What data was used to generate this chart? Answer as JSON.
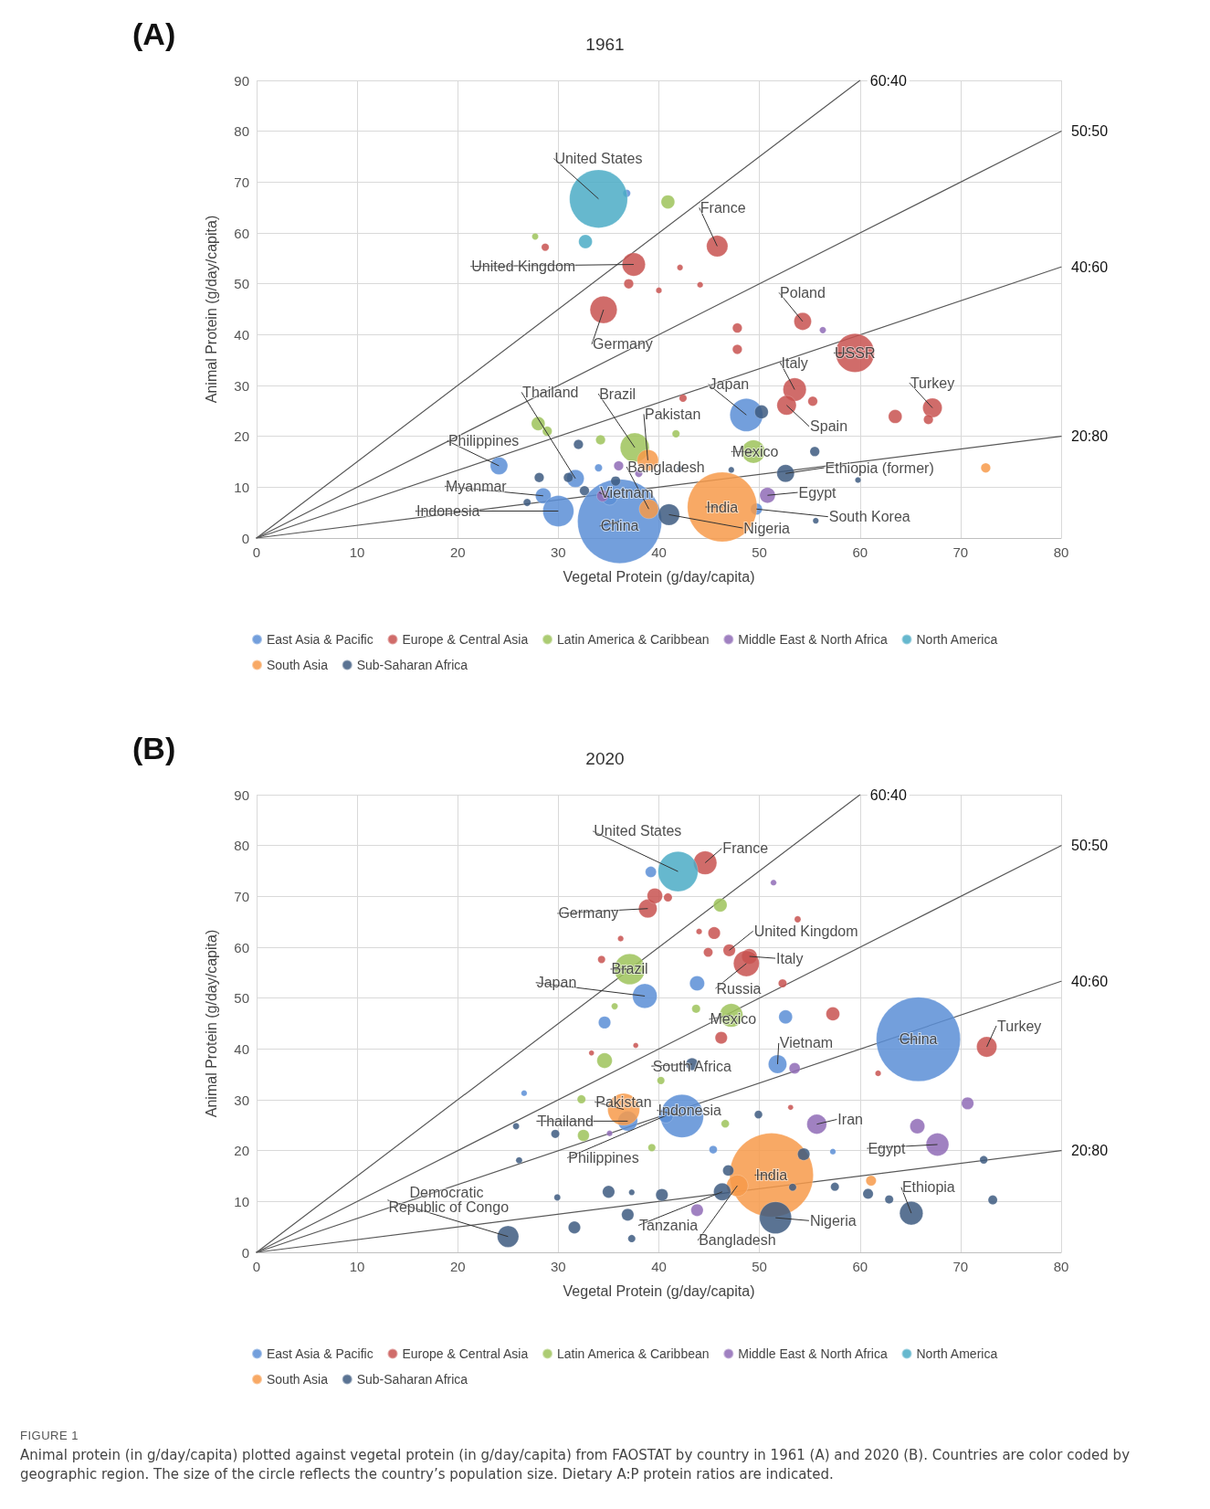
{
  "chart_data": [
    {
      "type": "bubble",
      "title": "1961",
      "xlabel": "Vegetal Protein (g/day/capita)",
      "ylabel": "Animal Protein (g/day/capita)",
      "xlim": [
        0,
        80
      ],
      "xticks": [
        0,
        10,
        20,
        30,
        40,
        50,
        60,
        70,
        80
      ],
      "ylim": [
        0,
        90
      ],
      "yticks": [
        0,
        10,
        20,
        30,
        40,
        50,
        60,
        70,
        80,
        90
      ],
      "grid": true,
      "legend": "bottom",
      "marker": "circle",
      "series": [
        {
          "name": "East Asia & Pacific",
          "color": "#5b8ed6",
          "x": [
            36.8,
            48.7,
            24.1,
            31.7,
            28.5,
            30.0,
            36.1,
            35.1,
            49.7,
            34.0
          ],
          "values": [
            67.8,
            24.2,
            14.2,
            11.7,
            8.3,
            5.3,
            3.3,
            8.0,
            5.7,
            13.8
          ],
          "sizes": [
            0.008,
            0.153,
            0.043,
            0.043,
            0.034,
            0.135,
            1,
            0.034,
            0.019,
            0.008
          ]
        },
        {
          "name": "Europe & Central Asia",
          "color": "#c85250",
          "x": [
            45.8,
            37.5,
            34.5,
            54.3,
            59.5,
            53.5,
            52.7,
            67.2,
            28.7,
            42.1,
            44.1,
            40.0,
            37.0,
            47.8,
            47.8,
            55.3,
            63.5,
            66.8,
            42.4
          ],
          "values": [
            57.4,
            53.8,
            44.9,
            42.6,
            36.4,
            29.2,
            26.1,
            25.6,
            57.2,
            53.2,
            49.8,
            48.7,
            50.0,
            41.3,
            37.1,
            26.9,
            23.9,
            23.3,
            27.5
          ],
          "sizes": [
            0.064,
            0.076,
            0.104,
            0.043,
            0.211,
            0.076,
            0.053,
            0.053,
            0.008,
            0.005,
            0.005,
            0.005,
            0.013,
            0.013,
            0.013,
            0.013,
            0.026,
            0.013,
            0.008
          ]
        },
        {
          "name": "Latin America & Caribbean",
          "color": "#9dc35b",
          "x": [
            40.9,
            27.7,
            37.6,
            49.4,
            28.0,
            28.9,
            34.2,
            41.7
          ],
          "values": [
            66.1,
            59.3,
            17.8,
            17.0,
            22.5,
            21.0,
            19.3,
            20.5
          ],
          "sizes": [
            0.026,
            0.006,
            0.119,
            0.076,
            0.026,
            0.013,
            0.013,
            0.008
          ]
        },
        {
          "name": "Middle East & North Africa",
          "color": "#8f6bb6",
          "x": [
            50.8,
            56.3,
            36.0,
            34.4,
            38.0
          ],
          "values": [
            8.4,
            40.9,
            14.2,
            8.3,
            12.7
          ],
          "sizes": [
            0.034,
            0.006,
            0.013,
            0.019,
            0.008
          ]
        },
        {
          "name": "North America",
          "color": "#4bacc6",
          "x": [
            34.0,
            32.7
          ],
          "values": [
            66.7,
            58.3
          ],
          "sizes": [
            0.476,
            0.026
          ]
        },
        {
          "name": "South Asia",
          "color": "#f79a4a",
          "x": [
            46.3,
            38.9,
            39.0,
            72.5
          ],
          "values": [
            6.1,
            15.3,
            5.7,
            13.8
          ],
          "sizes": [
            0.685,
            0.064,
            0.053,
            0.013
          ]
        },
        {
          "name": "Sub-Saharan Africa",
          "color": "#3d5a80",
          "x": [
            50.2,
            41.0,
            52.6,
            32.0,
            31.0,
            28.1,
            32.6,
            26.9,
            55.5,
            47.2,
            55.6,
            59.8,
            35.7,
            42.1
          ],
          "values": [
            24.8,
            4.6,
            12.7,
            18.4,
            11.9,
            11.9,
            9.3,
            7.0,
            17.0,
            13.4,
            3.4,
            11.4,
            11.2,
            13.6
          ],
          "sizes": [
            0.026,
            0.064,
            0.043,
            0.013,
            0.013,
            0.013,
            0.013,
            0.008,
            0.013,
            0.005,
            0.005,
            0.005,
            0.013,
            0.005
          ]
        },
        {
          "name": "60:40",
          "type": "line",
          "marker": "none",
          "color": "#595959",
          "x": [
            0,
            60
          ],
          "values": [
            0,
            90
          ]
        },
        {
          "name": "50:50",
          "type": "line",
          "marker": "none",
          "color": "#595959",
          "x": [
            0,
            80
          ],
          "values": [
            0,
            80
          ]
        },
        {
          "name": "40:60",
          "type": "line",
          "marker": "none",
          "color": "#595959",
          "x": [
            0,
            80
          ],
          "values": [
            0,
            53.3
          ]
        },
        {
          "name": "20:80",
          "type": "line",
          "marker": "none",
          "color": "#595959",
          "x": [
            0,
            80
          ],
          "values": [
            0,
            20
          ]
        }
      ],
      "annotations": [
        "(A)",
        {
          "text": "United States",
          "x": 34.0,
          "y": 66.7
        },
        {
          "text": "France",
          "x": 45.8,
          "y": 57.4
        },
        {
          "text": "United Kingdom",
          "x": 37.5,
          "y": 53.8
        },
        {
          "text": "Germany",
          "x": 34.5,
          "y": 44.9
        },
        {
          "text": "Poland",
          "x": 54.3,
          "y": 42.6
        },
        {
          "text": "USSR",
          "x": 59.5,
          "y": 36.4
        },
        {
          "text": "Italy",
          "x": 53.5,
          "y": 29.2
        },
        {
          "text": "Spain",
          "x": 52.7,
          "y": 26.1
        },
        {
          "text": "Turkey",
          "x": 67.2,
          "y": 25.6
        },
        {
          "text": "Japan",
          "x": 48.7,
          "y": 24.2
        },
        {
          "text": "Brazil",
          "x": 37.6,
          "y": 17.8
        },
        {
          "text": "Pakistan",
          "x": 38.9,
          "y": 15.3
        },
        {
          "text": "Mexico",
          "x": 49.4,
          "y": 17.0
        },
        {
          "text": "Philippines",
          "x": 24.1,
          "y": 14.2
        },
        {
          "text": "Thailand",
          "x": 31.7,
          "y": 11.7
        },
        {
          "text": "Myanmar",
          "x": 28.5,
          "y": 8.3
        },
        {
          "text": "Indonesia",
          "x": 30.0,
          "y": 5.3
        },
        {
          "text": "China",
          "x": 36.1,
          "y": 3.3
        },
        {
          "text": "Vietnam",
          "x": 35.1,
          "y": 8.0
        },
        {
          "text": "Bangladesh",
          "x": 39.0,
          "y": 5.7
        },
        {
          "text": "India",
          "x": 46.3,
          "y": 6.1
        },
        {
          "text": "Nigeria",
          "x": 41.0,
          "y": 4.6
        },
        {
          "text": "South Korea",
          "x": 49.7,
          "y": 5.7
        },
        {
          "text": "Egypt",
          "x": 50.8,
          "y": 8.4
        },
        {
          "text": "Ethiopia (former)",
          "x": 52.6,
          "y": 12.7
        }
      ]
    },
    {
      "type": "bubble",
      "title": "2020",
      "xlabel": "Vegetal Protein (g/day/capita)",
      "ylabel": "Animal Protein (g/day/capita)",
      "xlim": [
        0,
        80
      ],
      "xticks": [
        0,
        10,
        20,
        30,
        40,
        50,
        60,
        70,
        80
      ],
      "ylim": [
        0,
        90
      ],
      "yticks": [
        0,
        10,
        20,
        30,
        40,
        50,
        60,
        70,
        80,
        90
      ],
      "grid": true,
      "legend": "bottom",
      "marker": "circle",
      "series": [
        {
          "name": "East Asia & Pacific",
          "color": "#5b8ed6",
          "x": [
            65.8,
            38.6,
            36.9,
            42.3,
            40.7,
            51.8,
            39.2,
            34.6,
            26.6,
            43.8,
            52.6,
            45.4,
            57.3
          ],
          "values": [
            41.9,
            50.4,
            25.8,
            26.8,
            26.9,
            37.0,
            74.8,
            45.2,
            31.3,
            52.9,
            46.3,
            20.2,
            19.8
          ],
          "sizes": [
            1,
            0.085,
            0.055,
            0.261,
            0.031,
            0.048,
            0.017,
            0.021,
            0.005,
            0.031,
            0.026,
            0.009,
            0.005
          ]
        },
        {
          "name": "Europe & Central Asia",
          "color": "#c85250",
          "x": [
            44.6,
            38.9,
            47.0,
            49.0,
            48.7,
            72.6,
            39.6,
            36.2,
            34.3,
            33.3,
            37.7,
            40.9,
            45.5,
            44.9,
            44.0,
            53.8,
            52.3,
            57.3,
            46.2,
            61.8,
            53.1
          ],
          "values": [
            76.6,
            67.6,
            59.4,
            58.2,
            56.8,
            40.4,
            70.1,
            61.7,
            57.6,
            39.2,
            40.7,
            69.8,
            62.8,
            59.0,
            63.1,
            65.5,
            52.9,
            46.9,
            42.2,
            35.2,
            28.5
          ],
          "sizes": [
            0.077,
            0.048,
            0.021,
            0.033,
            0.094,
            0.058,
            0.033,
            0.005,
            0.008,
            0.004,
            0.004,
            0.01,
            0.021,
            0.012,
            0.005,
            0.006,
            0.01,
            0.026,
            0.021,
            0.005,
            0.004
          ]
        },
        {
          "name": "Latin America & Caribbean",
          "color": "#9dc35b",
          "x": [
            37.1,
            47.2,
            34.6,
            32.3,
            32.5,
            40.2,
            35.6,
            39.3,
            46.1,
            43.7,
            46.6
          ],
          "values": [
            55.7,
            46.6,
            37.7,
            30.1,
            23.0,
            33.8,
            48.4,
            20.6,
            68.3,
            47.9,
            25.3
          ],
          "sizes": [
            0.133,
            0.077,
            0.033,
            0.01,
            0.019,
            0.008,
            0.006,
            0.008,
            0.026,
            0.01,
            0.009
          ]
        },
        {
          "name": "Middle East & North Africa",
          "color": "#8f6bb6",
          "x": [
            55.7,
            67.7,
            35.1,
            51.4,
            53.5,
            65.7,
            70.7,
            43.8
          ],
          "values": [
            25.2,
            21.2,
            23.4,
            72.7,
            36.2,
            24.8,
            29.3,
            8.3
          ],
          "sizes": [
            0.055,
            0.073,
            0.005,
            0.005,
            0.017,
            0.031,
            0.021,
            0.021
          ]
        },
        {
          "name": "North America",
          "color": "#4bacc6",
          "x": [
            41.9
          ],
          "values": [
            74.9
          ],
          "sizes": [
            0.225
          ]
        },
        {
          "name": "South Asia",
          "color": "#f79a4a",
          "x": [
            51.2,
            36.5,
            47.8,
            61.1
          ],
          "values": [
            15.2,
            28.1,
            13.1,
            14.1
          ],
          "sizes": [
            0.99,
            0.144,
            0.065,
            0.015
          ]
        },
        {
          "name": "Sub-Saharan Africa",
          "color": "#3d5a80",
          "x": [
            43.3,
            25.0,
            65.1,
            51.6,
            46.3,
            29.7,
            25.8,
            26.1,
            35.0,
            36.9,
            31.6,
            37.3,
            29.9,
            37.3,
            72.3,
            73.2,
            54.4,
            60.8,
            62.9,
            57.5,
            49.9,
            46.9,
            40.3,
            53.3
          ],
          "values": [
            37.0,
            3.1,
            7.7,
            6.8,
            11.9,
            23.3,
            24.8,
            18.1,
            11.9,
            7.4,
            4.9,
            2.7,
            10.8,
            11.8,
            18.2,
            10.3,
            19.3,
            11.5,
            10.4,
            12.9,
            27.1,
            16.1,
            11.3,
            12.8
          ],
          "sizes": [
            0.021,
            0.065,
            0.077,
            0.144,
            0.042,
            0.01,
            0.006,
            0.006,
            0.021,
            0.021,
            0.021,
            0.008,
            0.006,
            0.005,
            0.009,
            0.012,
            0.021,
            0.015,
            0.01,
            0.01,
            0.009,
            0.017,
            0.021,
            0.008
          ]
        },
        {
          "name": "60:40",
          "type": "line",
          "marker": "none",
          "color": "#595959",
          "x": [
            0,
            60
          ],
          "values": [
            0,
            90
          ]
        },
        {
          "name": "50:50",
          "type": "line",
          "marker": "none",
          "color": "#595959",
          "x": [
            0,
            80
          ],
          "values": [
            0,
            80
          ]
        },
        {
          "name": "40:60",
          "type": "line",
          "marker": "none",
          "color": "#595959",
          "x": [
            0,
            80
          ],
          "values": [
            0,
            53.3
          ]
        },
        {
          "name": "20:80",
          "type": "line",
          "marker": "none",
          "color": "#595959",
          "x": [
            0,
            80
          ],
          "values": [
            0,
            20
          ]
        }
      ],
      "annotations": [
        "(B)",
        "FIGURE 1",
        "Animal protein (in g/day/capita) plotted against vegetal protein (in g/day/capita) from FAOSTAT by country in 1961 (A) and 2020 (B). Countries are color coded by geographic region. The size of the circle reflects the country’s population size. Dietary A:P protein ratios are indicated.",
        {
          "text": "United States",
          "x": 41.9,
          "y": 74.9
        },
        {
          "text": "France",
          "x": 44.6,
          "y": 76.6
        },
        {
          "text": "Germany",
          "x": 38.9,
          "y": 67.6
        },
        {
          "text": "United Kingdom",
          "x": 47.0,
          "y": 59.4
        },
        {
          "text": "Italy",
          "x": 49.0,
          "y": 58.2
        },
        {
          "text": "Brazil",
          "x": 37.1,
          "y": 55.7
        },
        {
          "text": "Russia",
          "x": 48.7,
          "y": 56.8
        },
        {
          "text": "Japan",
          "x": 38.6,
          "y": 50.4
        },
        {
          "text": "Mexico",
          "x": 47.2,
          "y": 46.6
        },
        {
          "text": "Vietnam",
          "x": 51.8,
          "y": 37.0
        },
        {
          "text": "China",
          "x": 65.8,
          "y": 41.9
        },
        {
          "text": "Turkey",
          "x": 72.6,
          "y": 40.4
        },
        {
          "text": "South Africa",
          "x": 43.3,
          "y": 37.0
        },
        {
          "text": "Pakistan",
          "x": 36.5,
          "y": 28.1
        },
        {
          "text": "Thailand",
          "x": 36.9,
          "y": 25.8
        },
        {
          "text": "Indonesia",
          "x": 42.3,
          "y": 26.8
        },
        {
          "text": "Iran",
          "x": 55.7,
          "y": 25.2
        },
        {
          "text": "Philippines",
          "x": 40.7,
          "y": 26.9
        },
        {
          "text": "Egypt",
          "x": 67.7,
          "y": 21.2
        },
        {
          "text": "India",
          "x": 51.2,
          "y": 15.2
        },
        {
          "text": "Democratic Republic of Congo",
          "x": 25.0,
          "y": 3.1
        },
        {
          "text": "Ethiopia",
          "x": 65.1,
          "y": 7.7
        },
        {
          "text": "Tanzania",
          "x": 46.3,
          "y": 11.9
        },
        {
          "text": "Nigeria",
          "x": 51.6,
          "y": 6.8
        },
        {
          "text": "Bangladesh",
          "x": 47.8,
          "y": 13.1
        }
      ]
    }
  ]
}
